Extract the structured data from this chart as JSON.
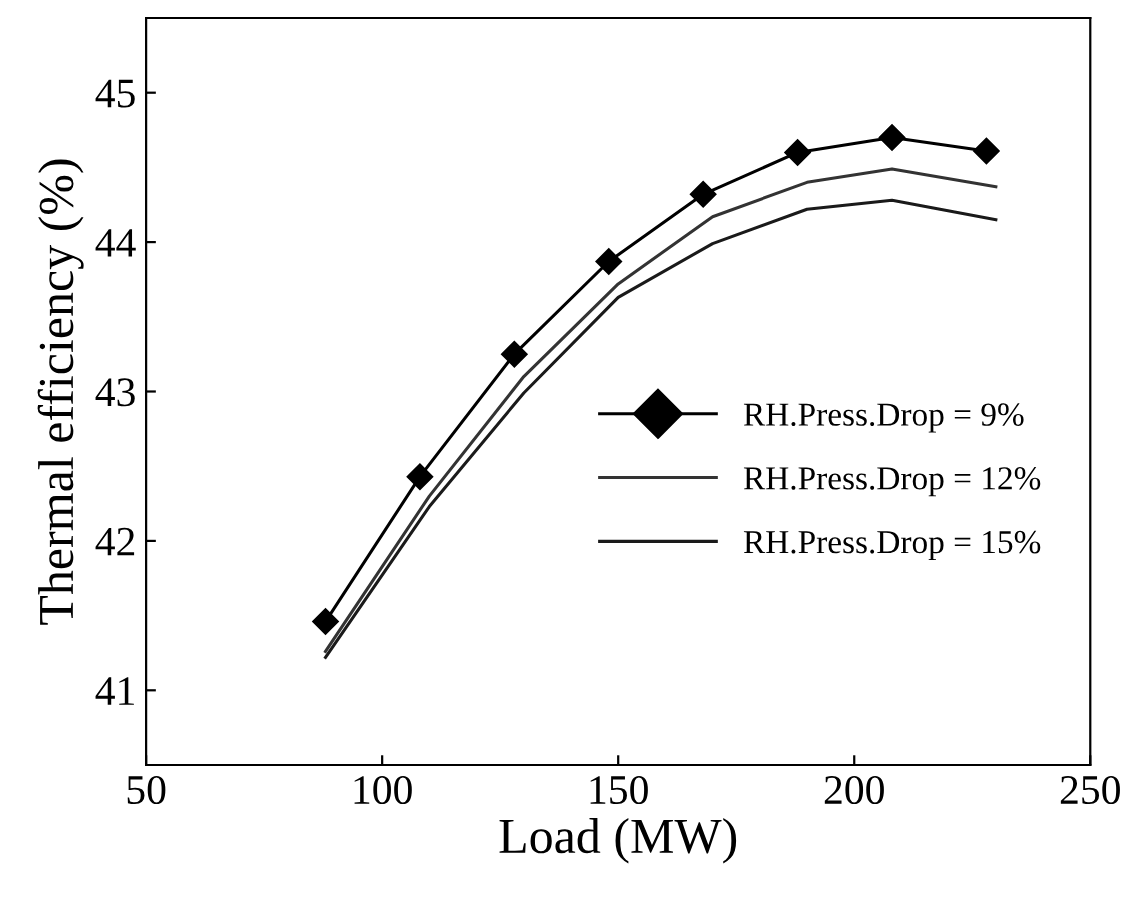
{
  "chart_data": {
    "type": "line",
    "xlabel": "Load (MW)",
    "ylabel": "Thermal efficiency (%)",
    "xlim": [
      50,
      250
    ],
    "xticks": [
      50,
      100,
      150,
      200,
      250
    ],
    "ylim": [
      40.5,
      45.5
    ],
    "yticks": [
      41,
      42,
      43,
      44,
      45
    ],
    "grid": false,
    "legend": "center right",
    "line_style": "solid",
    "series": [
      {
        "name": "RH.Press.Drop = 9%",
        "color": "#000000",
        "marker": "diamond",
        "x": [
          88,
          108,
          128,
          148,
          168,
          188,
          208,
          228
        ],
        "values": [
          41.46,
          42.43,
          43.25,
          43.87,
          44.32,
          44.6,
          44.7,
          44.61
        ]
      },
      {
        "name": "RH.Press.Drop = 12%",
        "color": "#333333",
        "marker": "none",
        "x": [
          88,
          110,
          130,
          150,
          170,
          190,
          208,
          230
        ],
        "values": [
          41.26,
          42.3,
          43.1,
          43.72,
          44.17,
          44.4,
          44.49,
          44.37
        ]
      },
      {
        "name": "RH.Press.Drop = 15%",
        "color": "#1a1a1a",
        "marker": "none",
        "x": [
          88,
          110,
          130,
          150,
          170,
          190,
          208,
          230
        ],
        "values": [
          41.22,
          42.23,
          42.99,
          43.63,
          43.99,
          44.22,
          44.28,
          44.15
        ]
      }
    ]
  }
}
